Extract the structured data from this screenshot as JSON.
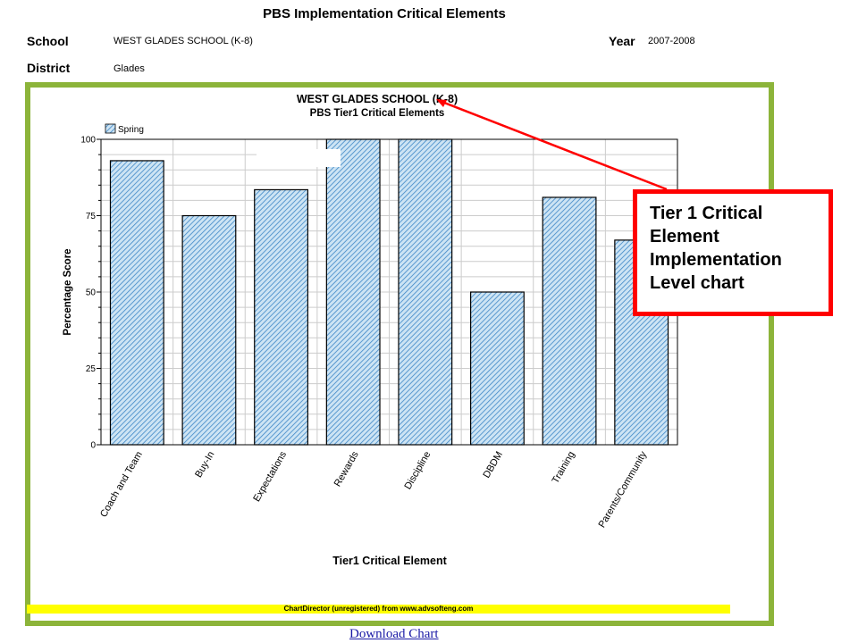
{
  "header": {
    "title": "PBS Implementation Critical Elements",
    "school_label": "School",
    "school_value": "WEST GLADES SCHOOL (K-8)",
    "year_label": "Year",
    "year_value": "2007-2008",
    "district_label": "District",
    "district_value": "Glades"
  },
  "chart_data": {
    "type": "bar",
    "title": "WEST GLADES SCHOOL (K-8)",
    "subtitle": "PBS Tier1 Critical Elements",
    "xlabel": "Tier1 Critical Element",
    "ylabel": "Percentage Score",
    "ylim": [
      0,
      100
    ],
    "yticks": [
      0,
      25,
      50,
      75,
      100
    ],
    "grid": true,
    "legend_position": "top-left",
    "categories": [
      "Coach and Team",
      "Buy-In",
      "Expectations",
      "Rewards",
      "Discipline",
      "DBDM",
      "Training",
      "Parents/Community"
    ],
    "series": [
      {
        "name": "Spring",
        "values": [
          93,
          75,
          83.5,
          100,
          100,
          50,
          81,
          67
        ]
      }
    ],
    "colors": {
      "bar_fill": "#cde4f4",
      "bar_hatch": "#3d86c6",
      "bar_edge": "#000000"
    }
  },
  "footer": {
    "watermark": "ChartDirector (unregistered) from www.advsofteng.com",
    "download_link": "Download Chart"
  },
  "annotation": {
    "lines": [
      "Tier 1 Critical",
      "Element",
      "Implementation",
      "Level chart"
    ],
    "color": "#ff0000"
  },
  "colors": {
    "frame": "#8cb43a",
    "watermark_bg": "#ffff00"
  }
}
